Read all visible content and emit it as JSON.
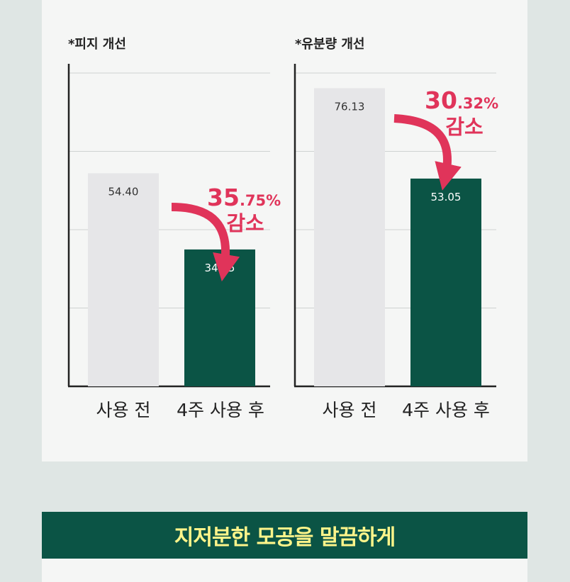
{
  "colors": {
    "before_bar": "#e6e6e8",
    "after_bar": "#0b5445",
    "accent": "#e0345a",
    "banner_bg": "#0b5445",
    "banner_text": "#fff58a"
  },
  "chart_data": [
    {
      "type": "bar",
      "title": "*피지 개선",
      "categories": [
        "사용 전",
        "4주 사용 후"
      ],
      "values": [
        54.4,
        34.95
      ],
      "value_labels": [
        "54.40",
        "34.95"
      ],
      "ylim": [
        0,
        80
      ],
      "grid": true,
      "annotation": {
        "value_main": "35",
        "value_decimal": ".75%",
        "word": "감소"
      }
    },
    {
      "type": "bar",
      "title": "*유분량 개선",
      "categories": [
        "사용 전",
        "4주 사용 후"
      ],
      "values": [
        76.13,
        53.05
      ],
      "value_labels": [
        "76.13",
        "53.05"
      ],
      "ylim": [
        0,
        80
      ],
      "grid": true,
      "annotation": {
        "value_main": "30",
        "value_decimal": ".32%",
        "word": "감소"
      }
    }
  ],
  "banner": {
    "text": "지저분한 모공을 말끔하게"
  }
}
